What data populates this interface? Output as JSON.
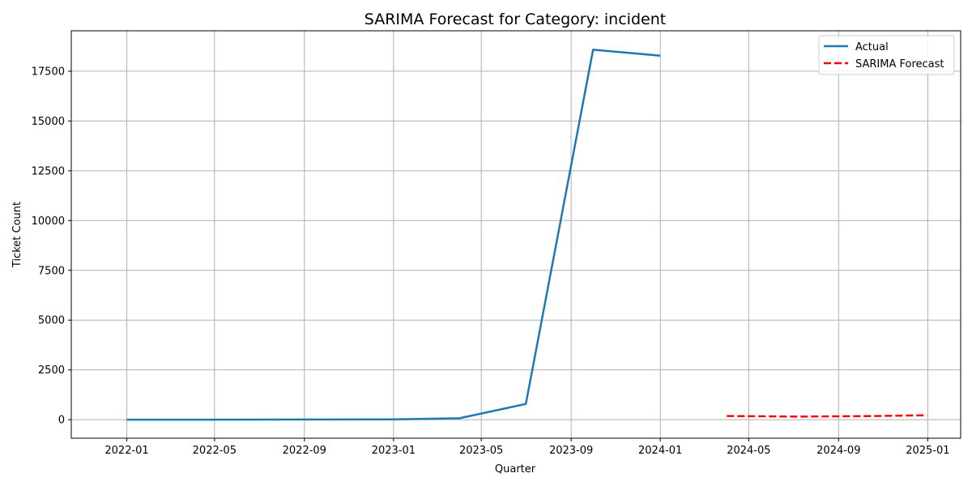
{
  "chart_data": {
    "type": "line",
    "title": "SARIMA Forecast for Category: incident",
    "xlabel": "Quarter",
    "ylabel": "Ticket Count",
    "x_ticks": [
      "2022-01",
      "2022-05",
      "2022-09",
      "2023-01",
      "2023-05",
      "2023-09",
      "2024-01",
      "2024-05",
      "2024-09",
      "2025-01"
    ],
    "y_ticks": [
      "0",
      "2500",
      "5000",
      "7500",
      "10000",
      "12500",
      "15000",
      "17500"
    ],
    "xlim": [
      "2021-10-17",
      "2025-02-15"
    ],
    "ylim": [
      -930,
      19530
    ],
    "grid": true,
    "legend_position": "top-right",
    "series": [
      {
        "name": "Actual",
        "color": "#1f77b4",
        "style": "solid",
        "points": [
          {
            "x": "2022-01-01",
            "y": 0
          },
          {
            "x": "2022-04-01",
            "y": 2
          },
          {
            "x": "2022-07-01",
            "y": 5
          },
          {
            "x": "2022-10-01",
            "y": 10
          },
          {
            "x": "2023-01-01",
            "y": 18
          },
          {
            "x": "2023-04-01",
            "y": 70
          },
          {
            "x": "2023-07-01",
            "y": 790
          },
          {
            "x": "2023-10-01",
            "y": 18580
          },
          {
            "x": "2024-01-01",
            "y": 18280
          }
        ]
      },
      {
        "name": "SARIMA Forecast",
        "color": "#ff0000",
        "style": "dashed",
        "points": [
          {
            "x": "2024-04-01",
            "y": 185
          },
          {
            "x": "2024-07-01",
            "y": 155
          },
          {
            "x": "2024-10-01",
            "y": 175
          },
          {
            "x": "2024-12-31",
            "y": 220
          }
        ]
      }
    ]
  }
}
